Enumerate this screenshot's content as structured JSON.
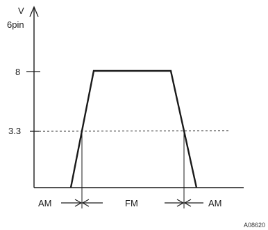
{
  "diagram": {
    "axis_unit": "V",
    "axis_subtitle": "6pin",
    "y_ticks": [
      "8",
      "3.3"
    ],
    "bands": {
      "left": "AM",
      "middle": "FM",
      "right": "AM"
    },
    "figure_code": "A08620"
  },
  "colors": {
    "ink": "#1a1a1a",
    "background": "#ffffff"
  }
}
